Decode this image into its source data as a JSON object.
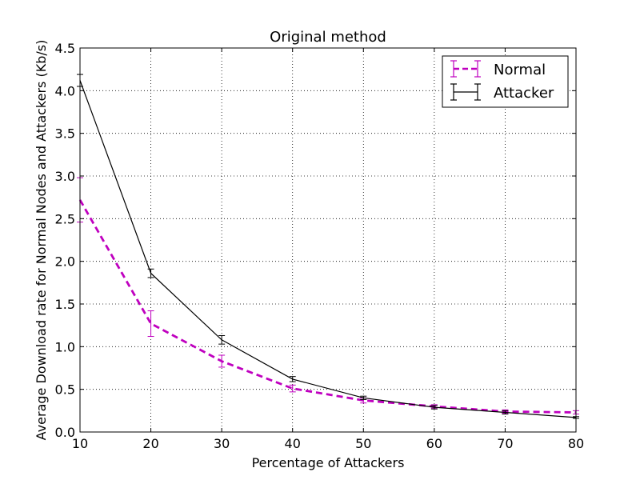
{
  "chart_data": {
    "type": "line",
    "title": "Original method",
    "xlabel": "Percentage of Attackers",
    "ylabel": "Average Download rate for Normal Nodes and Attackers (Kb/s)",
    "xlim": [
      10,
      80
    ],
    "ylim": [
      0.0,
      4.5
    ],
    "x_ticks": [
      "10",
      "20",
      "30",
      "40",
      "50",
      "60",
      "70",
      "80"
    ],
    "y_ticks": [
      "0.0",
      "0.5",
      "1.0",
      "1.5",
      "2.0",
      "2.5",
      "3.0",
      "3.5",
      "4.0",
      "4.5"
    ],
    "grid": true,
    "legend_position": "top-right",
    "x": [
      10,
      20,
      30,
      40,
      50,
      60,
      70,
      80
    ],
    "series": [
      {
        "name": "Normal",
        "color": "#bf00bf",
        "style": "dashed",
        "values": [
          2.72,
          1.27,
          0.83,
          0.51,
          0.37,
          0.3,
          0.24,
          0.23
        ],
        "errors": [
          0.26,
          0.15,
          0.07,
          0.04,
          0.03,
          0.02,
          0.02,
          0.02
        ]
      },
      {
        "name": "Attacker",
        "color": "#000000",
        "style": "solid",
        "values": [
          4.12,
          1.86,
          1.08,
          0.62,
          0.4,
          0.29,
          0.23,
          0.17
        ],
        "errors": [
          0.07,
          0.05,
          0.05,
          0.03,
          0.02,
          0.02,
          0.02,
          0.01
        ]
      }
    ]
  }
}
